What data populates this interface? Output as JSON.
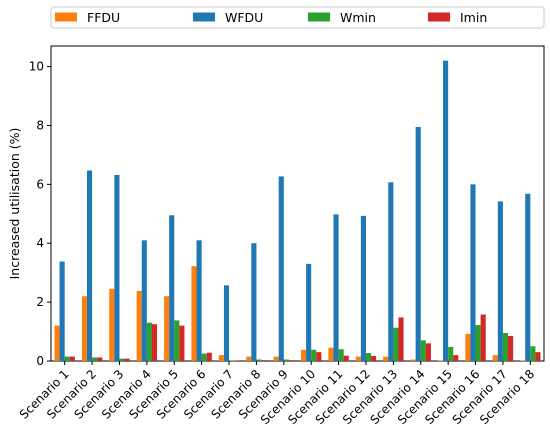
{
  "chart_data": {
    "type": "bar",
    "title": "",
    "xlabel": "",
    "ylabel": "Increased utilisation (%)",
    "ylim": [
      0,
      10.7
    ],
    "yticks": [
      0,
      2,
      4,
      6,
      8,
      10
    ],
    "grid": false,
    "legend_position": "top",
    "categories": [
      "Scenario 1",
      "Scenario 2",
      "Scenario 3",
      "Scenario 4",
      "Scenario 5",
      "Scenario 6",
      "Scenario 7",
      "Scenario 8",
      "Scenario 9",
      "Scenario 10",
      "Scenario 11",
      "Scenario 12",
      "Scenario 13",
      "Scenario 14",
      "Scenario 15",
      "Scenario 16",
      "Scenario 17",
      "Scenario 18"
    ],
    "series": [
      {
        "name": "FFDU",
        "color": "#ff7f0e",
        "values": [
          1.2,
          2.2,
          2.45,
          2.38,
          2.2,
          3.22,
          0.2,
          0.15,
          0.15,
          0.38,
          0.45,
          0.15,
          0.15,
          0.05,
          0.02,
          0.92,
          0.2,
          0.02
        ]
      },
      {
        "name": "WFDU",
        "color": "#1f77b4",
        "values": [
          3.38,
          6.47,
          6.32,
          4.1,
          4.95,
          4.1,
          2.57,
          4.0,
          6.27,
          3.3,
          4.98,
          4.93,
          6.07,
          7.95,
          10.2,
          6.0,
          5.42,
          5.68
        ]
      },
      {
        "name": "Wmin",
        "color": "#2ca02c",
        "values": [
          0.15,
          0.12,
          0.08,
          1.3,
          1.38,
          0.25,
          0.02,
          0.05,
          0.05,
          0.38,
          0.4,
          0.27,
          1.13,
          0.7,
          0.48,
          1.22,
          0.95,
          0.5
        ]
      },
      {
        "name": "Imin",
        "color": "#d62728",
        "values": [
          0.15,
          0.12,
          0.08,
          1.25,
          1.2,
          0.28,
          0.02,
          0.03,
          0.03,
          0.3,
          0.18,
          0.17,
          1.48,
          0.6,
          0.2,
          1.58,
          0.85,
          0.3
        ]
      }
    ]
  }
}
